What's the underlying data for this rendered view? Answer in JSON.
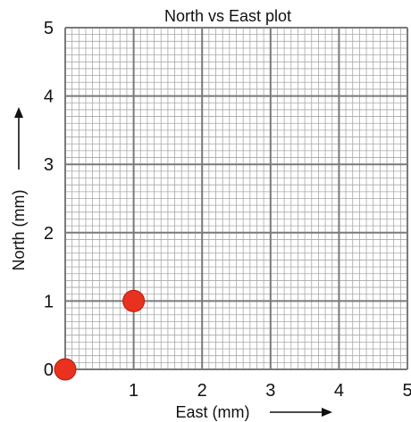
{
  "chart_data": {
    "type": "scatter",
    "title": "North vs East plot",
    "xlabel": "East (mm)",
    "ylabel": "North (mm)",
    "xlim": [
      0,
      5
    ],
    "ylim": [
      0,
      5
    ],
    "x_ticks": [
      "1",
      "2",
      "3",
      "4",
      "5"
    ],
    "y_ticks": [
      "0",
      "1",
      "2",
      "3",
      "4",
      "5"
    ],
    "grid": true,
    "points": [
      {
        "x": 0,
        "y": 0
      },
      {
        "x": 1,
        "y": 1
      }
    ],
    "point_color": "#e8311f",
    "grid_major_color": "#7a7a7a",
    "grid_minor_color": "#a8a8a8"
  }
}
